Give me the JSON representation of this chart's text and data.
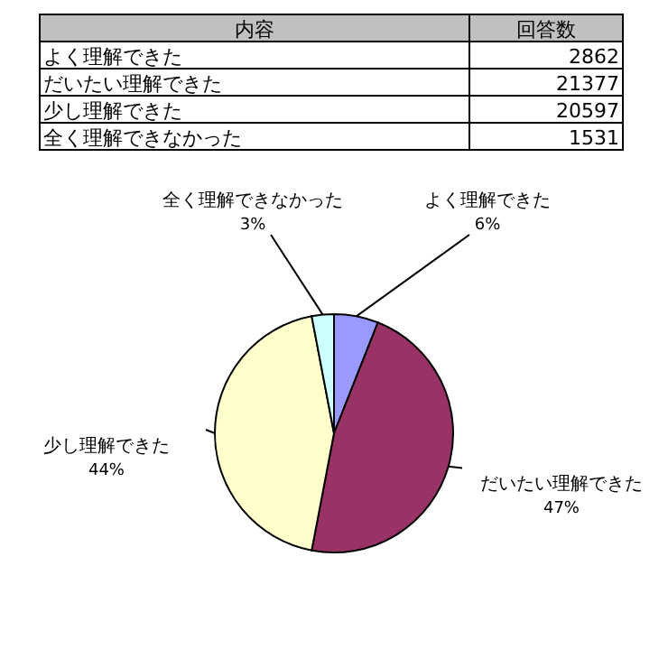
{
  "chart_data": [
    {
      "type": "other",
      "data_labels": true,
      "annotations": [
        "内容",
        "回答数"
      ],
      "categories": [
        "よく理解できた",
        "だいたい理解できた",
        "少し理解できた",
        "全く理解できなかった"
      ],
      "values": [
        2862,
        21377,
        20597,
        1531
      ]
    },
    {
      "type": "pie",
      "categories": [
        "よく理解できた",
        "だいたい理解できた",
        "少し理解できた",
        "全く理解できなかった"
      ],
      "values": [
        6,
        47,
        44,
        3
      ],
      "colors": [
        "#9999ff",
        "#993366",
        "#ffffcc",
        "#ccffff"
      ],
      "value_labels": [
        "6%",
        "47%",
        "44%",
        "3%"
      ]
    }
  ]
}
